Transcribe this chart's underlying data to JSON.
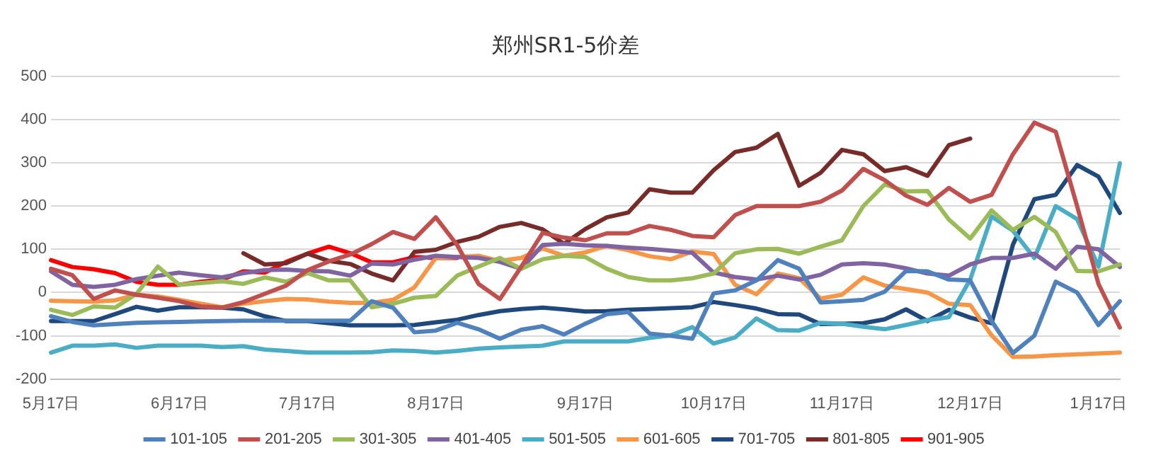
{
  "chart_data": {
    "type": "line",
    "title": "郑州SR1-5价差",
    "categories": [
      "5月17日",
      null,
      null,
      null,
      null,
      null,
      "6月17日",
      null,
      null,
      null,
      null,
      null,
      "7月17日",
      null,
      null,
      null,
      null,
      null,
      "8月17日",
      null,
      null,
      null,
      null,
      null,
      null,
      "9月17日",
      null,
      null,
      null,
      null,
      null,
      "10月17日",
      null,
      null,
      null,
      null,
      null,
      "11月17日",
      null,
      null,
      null,
      null,
      null,
      "12月17日",
      null,
      null,
      null,
      null,
      null,
      "1月17日",
      null
    ],
    "ylim": [
      -200,
      500
    ],
    "yticks": [
      -200,
      -100,
      0,
      100,
      200,
      300,
      400,
      500
    ],
    "grid": "y",
    "legend": "bottom",
    "marker": "none",
    "series": [
      {
        "name": "101-105",
        "color": "#4f81bd",
        "values": [
          -55,
          -68,
          -76,
          -73,
          -70,
          -69,
          -68,
          -67,
          -66,
          -65,
          -65,
          -65,
          -65,
          -65,
          -65,
          -20,
          -35,
          -92,
          -88,
          -70,
          -85,
          -107,
          -86,
          -78,
          -97,
          -72,
          -50,
          -45,
          -95,
          -100,
          -107,
          -2,
          5,
          28,
          75,
          55,
          -23,
          -20,
          -17,
          2,
          50,
          49,
          30,
          28,
          -66,
          -140,
          -100,
          25,
          0,
          -75,
          -20
        ]
      },
      {
        "name": "201-205",
        "color": "#c0504d",
        "values": [
          55,
          40,
          -15,
          5,
          -5,
          -12,
          -20,
          -32,
          -35,
          -22,
          -3,
          16,
          52,
          72,
          88,
          112,
          140,
          124,
          174,
          110,
          20,
          -15,
          60,
          138,
          127,
          121,
          137,
          137,
          154,
          145,
          131,
          128,
          179,
          200,
          200,
          200,
          210,
          236,
          286,
          260,
          224,
          203,
          242,
          210,
          226,
          320,
          393,
          372,
          200,
          20,
          -81
        ]
      },
      {
        "name": "301-305",
        "color": "#9bbb59",
        "values": [
          -40,
          -52,
          -32,
          -35,
          -3,
          60,
          18,
          22,
          26,
          20,
          35,
          25,
          45,
          28,
          28,
          -34,
          -26,
          -12,
          -8,
          39,
          60,
          80,
          55,
          77,
          85,
          82,
          55,
          36,
          28,
          28,
          33,
          44,
          91,
          100,
          101,
          90,
          106,
          121,
          200,
          250,
          234,
          235,
          169,
          125,
          190,
          145,
          175,
          140,
          50,
          49,
          65
        ]
      },
      {
        "name": "401-405",
        "color": "#8064a2",
        "values": [
          49,
          18,
          13,
          18,
          31,
          39,
          46,
          40,
          35,
          45,
          52,
          53,
          50,
          49,
          39,
          67,
          65,
          76,
          85,
          82,
          80,
          71,
          55,
          110,
          113,
          109,
          108,
          104,
          101,
          97,
          92,
          46,
          36,
          30,
          39,
          30,
          41,
          65,
          68,
          65,
          56,
          44,
          39,
          65,
          80,
          80,
          90,
          55,
          106,
          100,
          59
        ]
      },
      {
        "name": "501-505",
        "color": "#4bacc6",
        "values": [
          -139,
          -123,
          -123,
          -120,
          -128,
          -123,
          -123,
          -123,
          -126,
          -124,
          -132,
          -135,
          -139,
          -139,
          -139,
          -138,
          -134,
          -135,
          -139,
          -135,
          -130,
          -127,
          -125,
          -123,
          -113,
          -113,
          -113,
          -113,
          -105,
          -99,
          -80,
          -118,
          -104,
          -60,
          -87,
          -88,
          -70,
          -72,
          -79,
          -85,
          -75,
          -64,
          -57,
          30,
          176,
          143,
          80,
          200,
          170,
          60,
          299
        ]
      },
      {
        "name": "601-605",
        "color": "#f79646",
        "values": [
          -19,
          -20,
          -21,
          -18,
          -5,
          -9,
          -17,
          -26,
          -34,
          -26,
          -20,
          -15,
          -16,
          -21,
          -24,
          -24,
          -17,
          12,
          80,
          82,
          85,
          73,
          80,
          102,
          85,
          93,
          108,
          98,
          84,
          77,
          95,
          89,
          18,
          -4,
          44,
          33,
          -14,
          -5,
          35,
          16,
          8,
          0,
          -26,
          -29,
          -99,
          -149,
          -148,
          -145,
          -143,
          -141,
          -139
        ]
      },
      {
        "name": "701-705",
        "color": "#1f497d",
        "values": [
          -66,
          -66,
          -66,
          -50,
          -33,
          -42,
          -34,
          -34,
          -35,
          -39,
          -55,
          -66,
          -66,
          -71,
          -76,
          -76,
          -76,
          -75,
          -69,
          -63,
          -52,
          -43,
          -38,
          -35,
          -39,
          -44,
          -43,
          -40,
          -38,
          -36,
          -34,
          -22,
          -29,
          -37,
          -50,
          -51,
          -73,
          -72,
          -71,
          -62,
          -39,
          -66,
          -40,
          -58,
          -71,
          111,
          216,
          226,
          295,
          268,
          184
        ]
      },
      {
        "name": "801-805",
        "color": "#772c2a",
        "values": [
          null,
          null,
          null,
          null,
          null,
          null,
          null,
          null,
          null,
          91,
          65,
          68,
          90,
          73,
          66,
          44,
          28,
          94,
          99,
          117,
          129,
          152,
          161,
          146,
          113,
          147,
          174,
          185,
          239,
          231,
          231,
          283,
          325,
          335,
          367,
          247,
          277,
          330,
          320,
          281,
          290,
          270,
          341,
          356,
          null,
          null,
          null,
          null,
          null,
          null,
          null
        ]
      },
      {
        "name": "901-905",
        "color": "#ff0000",
        "values": [
          75,
          59,
          54,
          45,
          25,
          18,
          18,
          25,
          30,
          49,
          46,
          71,
          90,
          106,
          91,
          70,
          70,
          82,
          80,
          80,
          null,
          null,
          null,
          null,
          null,
          null,
          null,
          null,
          null,
          null,
          null,
          null,
          null,
          null,
          null,
          null,
          null,
          null,
          null,
          null,
          null,
          null,
          null,
          null,
          null,
          null,
          null,
          null,
          null,
          null,
          null
        ]
      }
    ]
  }
}
